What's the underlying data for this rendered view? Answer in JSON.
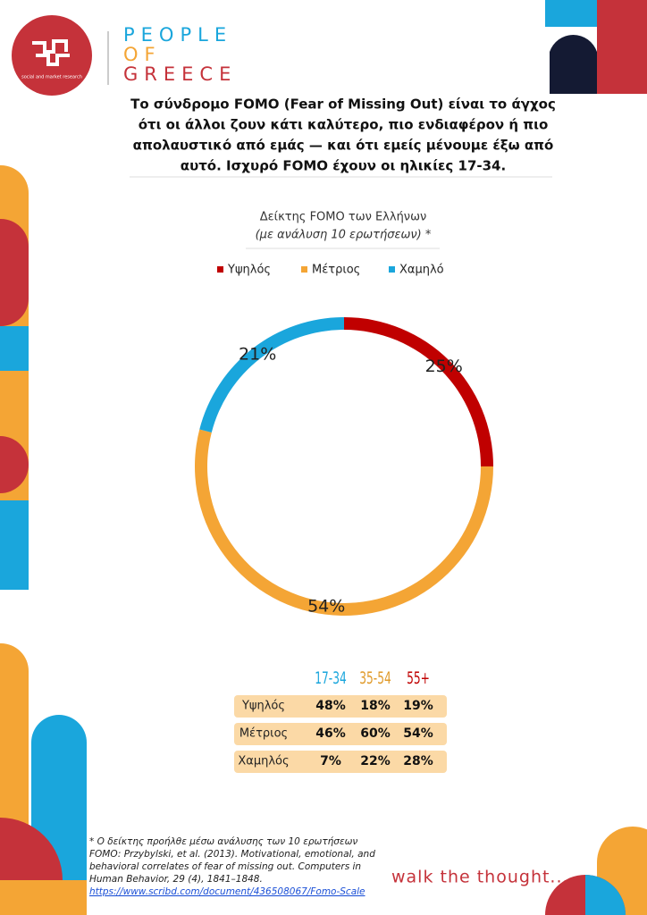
{
  "brand": {
    "logo_text": "social and market research",
    "lines": [
      "PEOPLE",
      "OF",
      "GREECE"
    ]
  },
  "intro": [
    "Το σύνδρομο FOMO (Fear of Missing Out) είναι το άγχος",
    "ότι οι άλλοι ζουν κάτι καλύτερο, πιο ενδιαφέρον ή πιο",
    "απολαυστικό από εμάς — και ότι εμείς μένουμε έξω από",
    "αυτό. Ισχυρό FOMO έχουν οι ηλικίες 17-34."
  ],
  "chart_data": {
    "type": "donut",
    "title": "Δείκτης FOMO των Ελλήνων",
    "subtitle": "(με ανάλυση 10 ερωτήσεων) *",
    "categories": [
      "Υψηλός",
      "Μέτριος",
      "Χαμηλό"
    ],
    "colors": [
      "#c00000",
      "#f4a535",
      "#1aa6dc"
    ],
    "values": [
      25,
      54,
      21
    ],
    "value_labels": [
      "25%",
      "54%",
      "21%"
    ]
  },
  "table": {
    "columns": [
      "17-34",
      "35-54",
      "55+"
    ],
    "column_colors": [
      "#1aa6dc",
      "#e09a2a",
      "#c00000"
    ],
    "rows": [
      [
        "Υψηλός",
        "48%",
        "18%",
        "19%"
      ],
      [
        "Μέτριος",
        "46%",
        "60%",
        "54%"
      ],
      [
        "Χαμηλός",
        "7%",
        "22%",
        "28%"
      ]
    ]
  },
  "footnote": [
    "* Ο δείκτης προήλθε μέσω ανάλυσης των 10 ερωτήσεων",
    "FOMO: Przybylski, et al. (2013). Motivational, emotional, and",
    "behavioral correlates of fear of missing out. Computers in",
    "Human Behavior, 29 (4), 1841–1848."
  ],
  "link": "https://www.scribd.com/document/436508067/Fomo-Scale",
  "tagline": "walk the thought..."
}
